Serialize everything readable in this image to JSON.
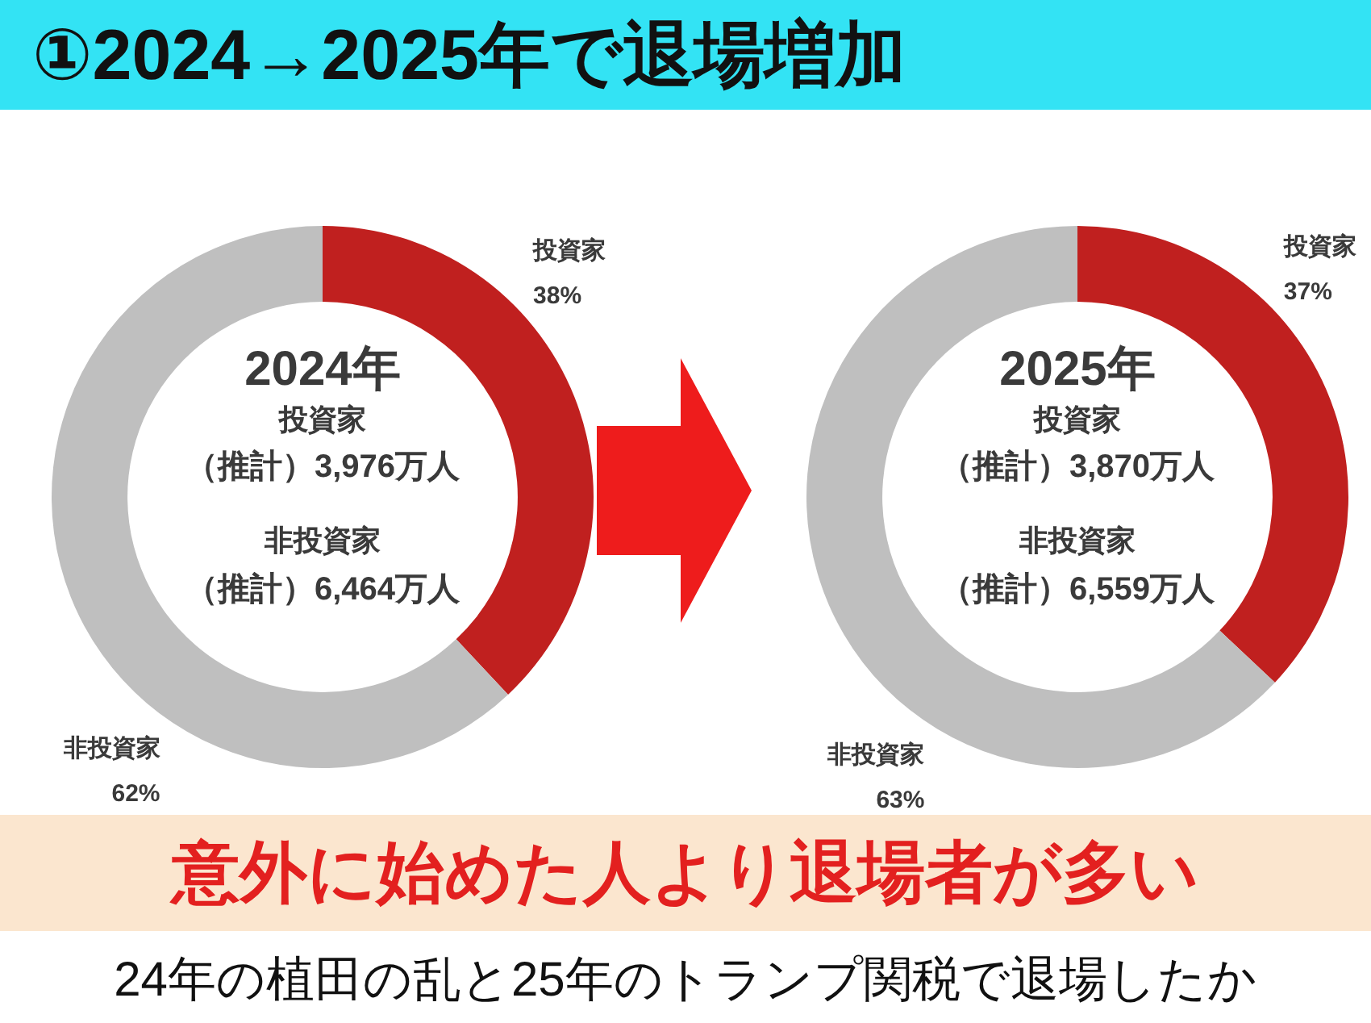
{
  "chart_data": [
    {
      "type": "other",
      "title": "①2024→2025年で退場増加"
    },
    {
      "type": "donut",
      "title": "2024年",
      "categories": [
        "投資家",
        "非投資家"
      ],
      "values": [
        38,
        62
      ],
      "value_labels": [
        "38%",
        "62%"
      ],
      "colors": [
        "#c0201f",
        "#bfbfbf"
      ],
      "annotations": [
        "投資家",
        "（推計）3,976万人",
        "非投資家",
        "（推計）6,464万人"
      ]
    },
    {
      "type": "donut",
      "title": "2025年",
      "categories": [
        "投資家",
        "非投資家"
      ],
      "values": [
        37,
        63
      ],
      "value_labels": [
        "37%",
        "63%"
      ],
      "colors": [
        "#c0201f",
        "#bfbfbf"
      ],
      "annotations": [
        "投資家",
        "（推計）3,870万人",
        "非投資家",
        "（推計）6,559万人"
      ]
    },
    {
      "type": "other",
      "annotations": [
        "意外に始めた人より退場者が多い",
        "24年の植田の乱と25年のトランプ関税で退場したか"
      ]
    }
  ]
}
